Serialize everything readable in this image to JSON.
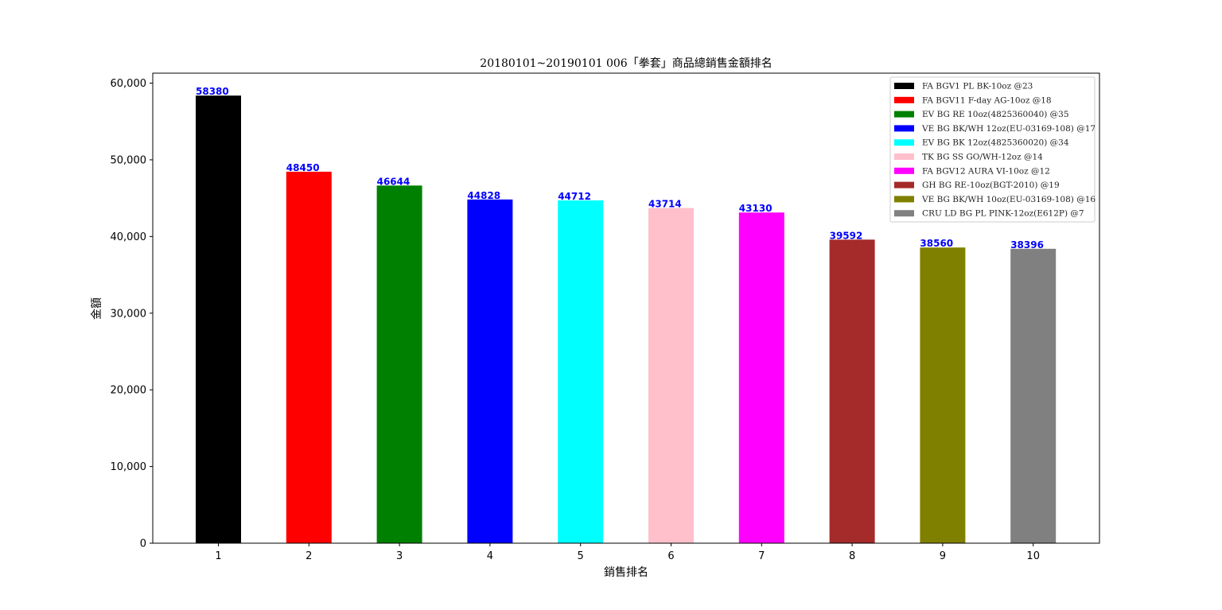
{
  "chart_data": {
    "type": "bar",
    "title": "20180101~20190101 006「拳套」商品總銷售金額排名",
    "xlabel": "銷售排名",
    "ylabel": "金額",
    "categories": [
      "1",
      "2",
      "3",
      "4",
      "5",
      "6",
      "7",
      "8",
      "9",
      "10"
    ],
    "values": [
      58380,
      48450,
      46644,
      44828,
      44712,
      43714,
      43130,
      39592,
      38560,
      38396
    ],
    "data_labels": [
      "58380",
      "48450",
      "46644",
      "44828",
      "44712",
      "43714",
      "43130",
      "39592",
      "38560",
      "38396"
    ],
    "colors": [
      "#000000",
      "#ff0000",
      "#008000",
      "#0000ff",
      "#00ffff",
      "#ffc0cb",
      "#ff00ff",
      "#a52a2a",
      "#808000",
      "#808080"
    ],
    "data_label_color": "#0000ff",
    "ylim": [
      0,
      61300
    ],
    "yticks": [
      0,
      10000,
      20000,
      30000,
      40000,
      50000,
      60000
    ],
    "ytick_labels": [
      "0",
      "10,000",
      "20,000",
      "30,000",
      "40,000",
      "50,000",
      "60,000"
    ],
    "grid": false,
    "legend_position": "top-right",
    "legend": [
      {
        "label": "FA BGV1 PL BK-10oz @23",
        "color": "#000000"
      },
      {
        "label": "FA BGV11 F-day AG-10oz @18",
        "color": "#ff0000"
      },
      {
        "label": "EV BG RE 10oz(4825360040) @35",
        "color": "#008000"
      },
      {
        "label": "VE BG BK/WH 12oz(EU-03169-108) @17",
        "color": "#0000ff"
      },
      {
        "label": "EV BG BK 12oz(4825360020) @34",
        "color": "#00ffff"
      },
      {
        "label": "TK BG SS GO/WH-12oz @14",
        "color": "#ffc0cb"
      },
      {
        "label": "FA BGV12 AURA VI-10oz @12",
        "color": "#ff00ff"
      },
      {
        "label": "GH BG RE-10oz(BGT-2010) @19",
        "color": "#a52a2a"
      },
      {
        "label": "VE BG BK/WH 10oz(EU-03169-108) @16",
        "color": "#808000"
      },
      {
        "label": "CRU LD BG PL PINK-12oz(E612P) @7",
        "color": "#808080"
      }
    ]
  }
}
